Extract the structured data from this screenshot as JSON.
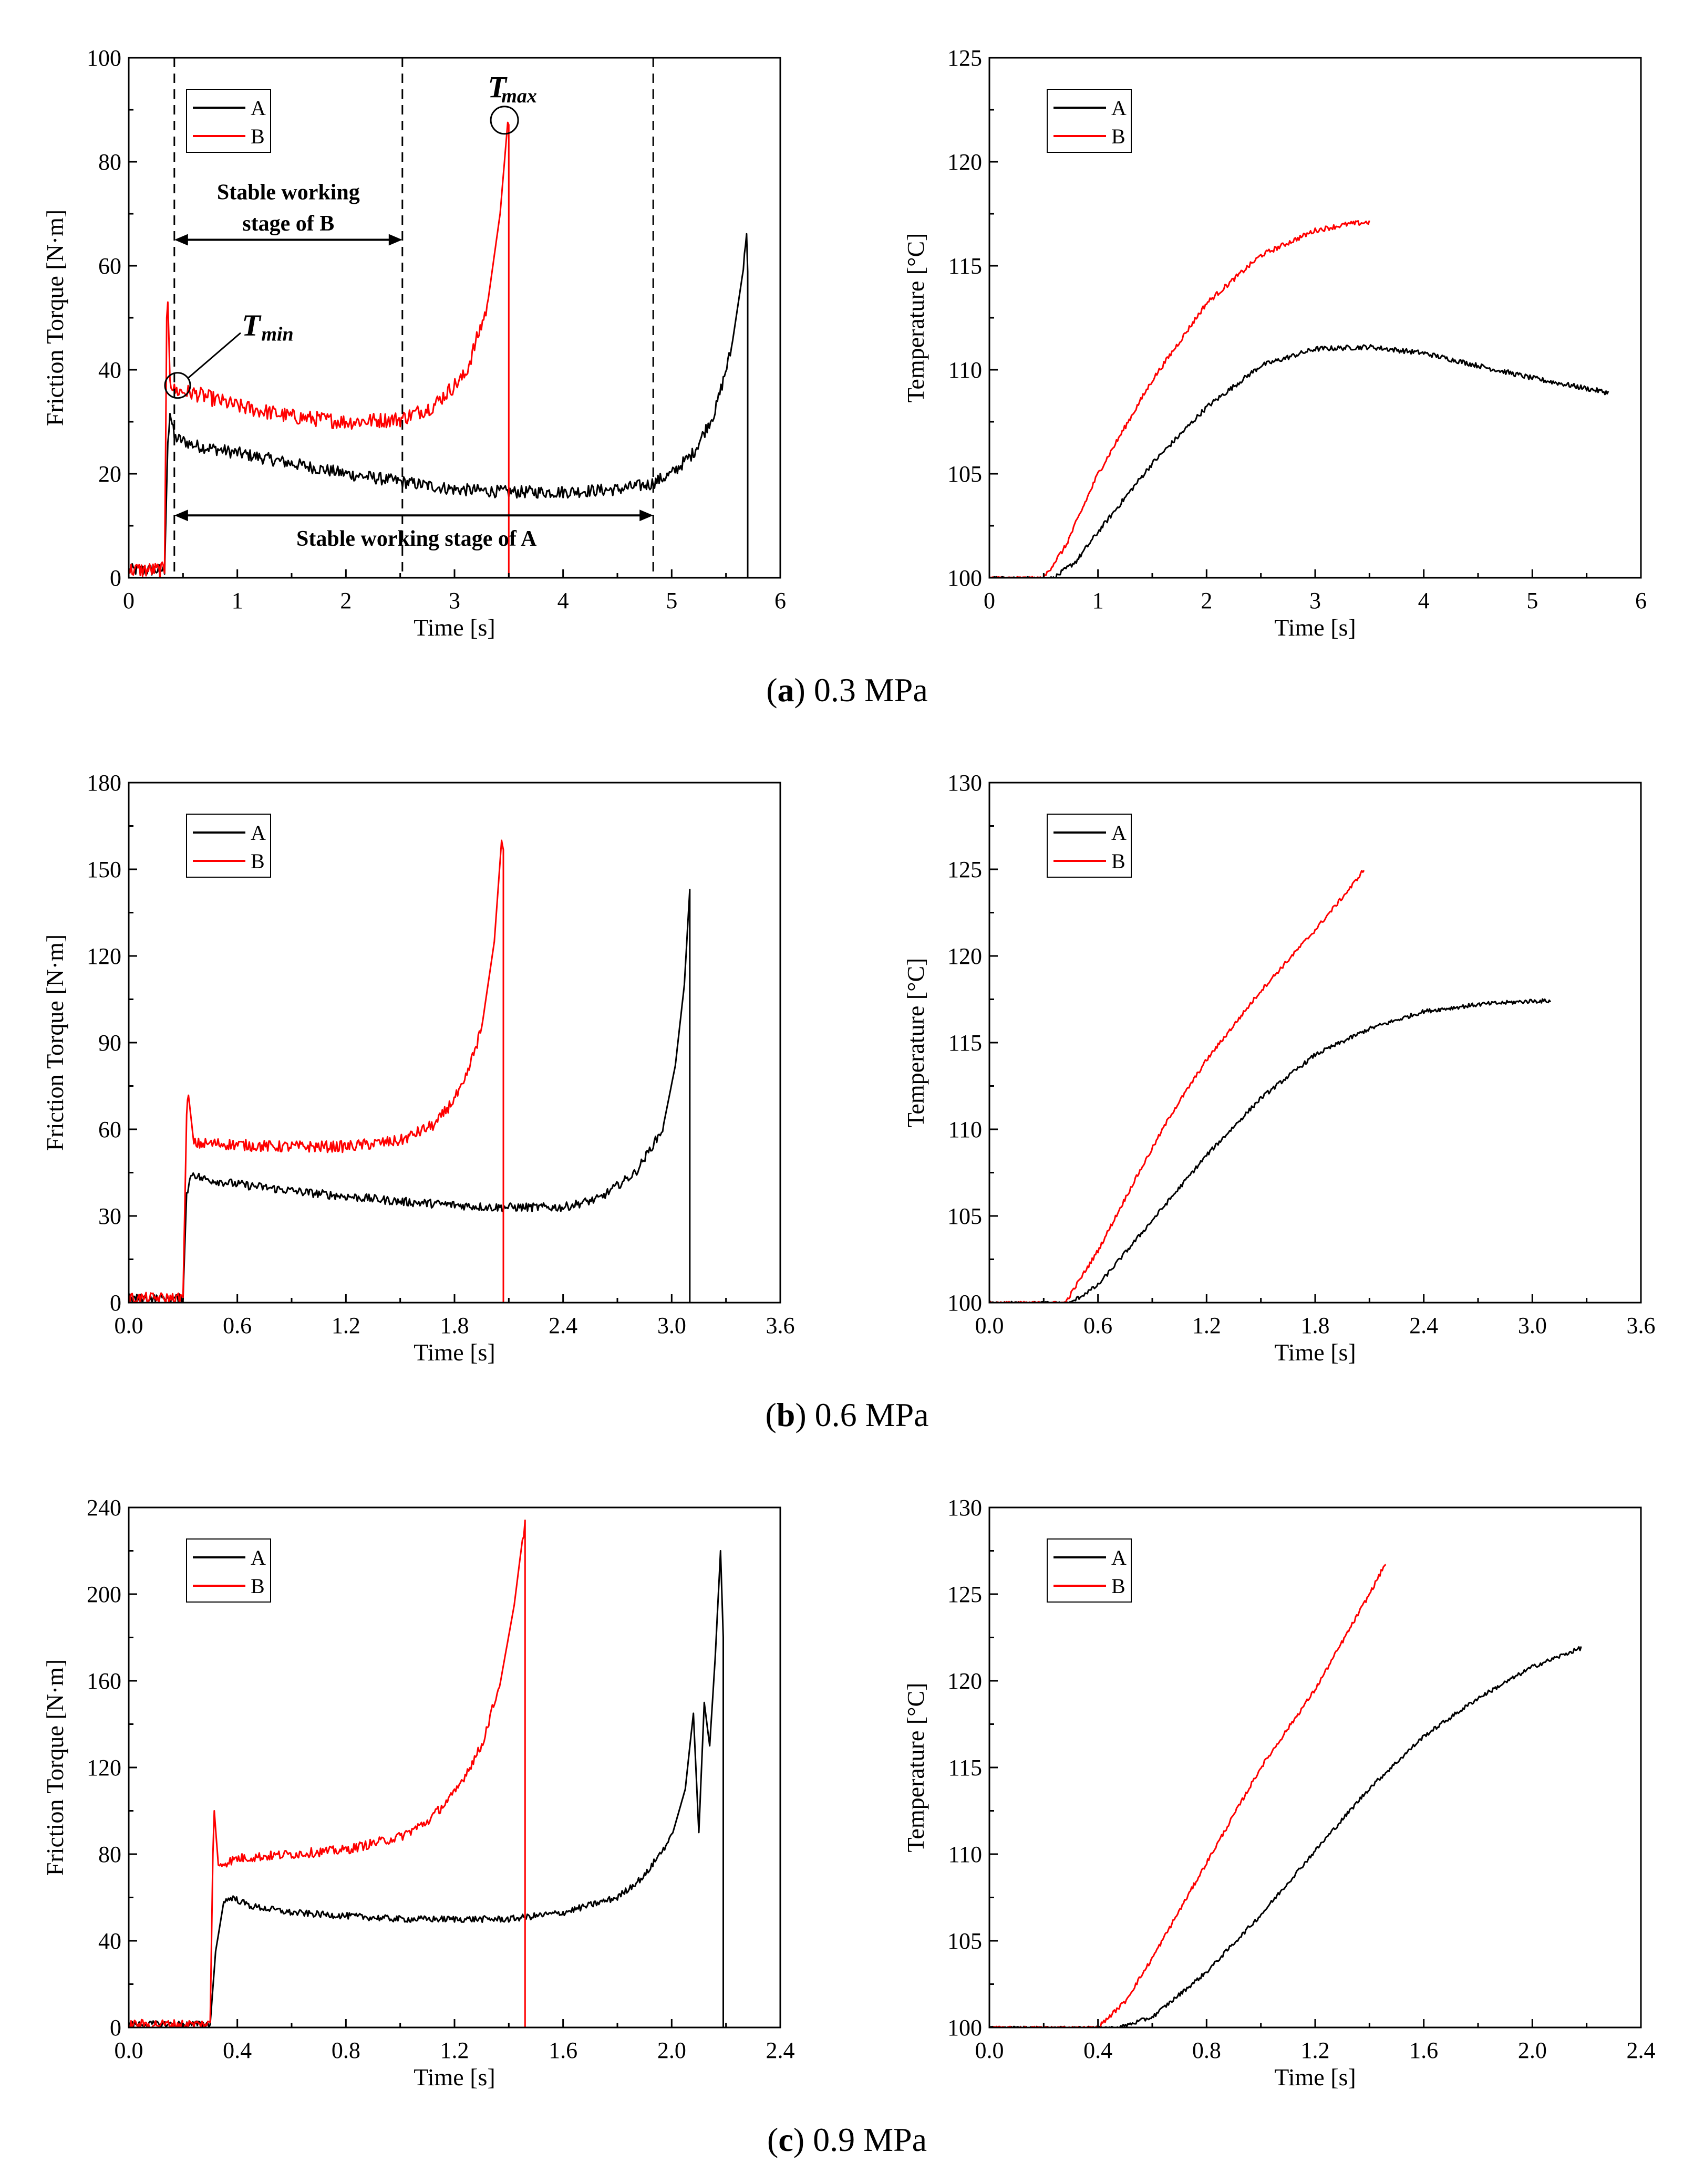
{
  "figure": {
    "captions": [
      {
        "letter": "a",
        "rest": ") 0.3 MPa",
        "open": "("
      },
      {
        "letter": "b",
        "rest": ") 0.6 MPa",
        "open": "("
      },
      {
        "letter": "c",
        "rest": ") 0.9 MPa",
        "open": "("
      }
    ]
  },
  "colors": {
    "A": "#000000",
    "B": "#ff0000"
  },
  "chart_data": [
    {
      "id": "a-torque",
      "type": "line",
      "row": 0,
      "col": 0,
      "xlabel": "Time [s]",
      "ylabel": "Friction Torque [N·m]",
      "xlim": [
        0,
        6
      ],
      "ylim": [
        0,
        100
      ],
      "xticks": [
        "0",
        "1",
        "2",
        "3",
        "4",
        "5",
        "6"
      ],
      "yticks": [
        "0",
        "20",
        "40",
        "60",
        "80",
        "100"
      ],
      "legend": [
        "A",
        "B"
      ],
      "legend_position": "top-left",
      "series": [
        {
          "name": "A",
          "noise": 1.2,
          "points": [
            [
              0,
              1.5
            ],
            [
              0.33,
              1.5
            ],
            [
              0.36,
              26
            ],
            [
              0.38,
              32
            ],
            [
              0.42,
              27
            ],
            [
              0.6,
              25.5
            ],
            [
              1,
              24
            ],
            [
              1.5,
              22
            ],
            [
              2,
              20
            ],
            [
              2.5,
              18.5
            ],
            [
              3,
              17
            ],
            [
              3.5,
              16.5
            ],
            [
              4,
              16.5
            ],
            [
              4.5,
              17
            ],
            [
              4.8,
              18
            ],
            [
              5,
              20
            ],
            [
              5.2,
              24
            ],
            [
              5.4,
              32
            ],
            [
              5.55,
              44
            ],
            [
              5.65,
              58
            ],
            [
              5.69,
              66
            ],
            [
              5.7,
              60
            ],
            [
              5.7,
              0
            ]
          ]
        },
        {
          "name": "B",
          "noise": 1.5,
          "points": [
            [
              0,
              1.5
            ],
            [
              0.33,
              1.5
            ],
            [
              0.35,
              50
            ],
            [
              0.36,
              54
            ],
            [
              0.38,
              38
            ],
            [
              0.42,
              36
            ],
            [
              0.6,
              35.5
            ],
            [
              1,
              33
            ],
            [
              1.5,
              31
            ],
            [
              2,
              30
            ],
            [
              2.5,
              30.5
            ],
            [
              2.8,
              33
            ],
            [
              3.1,
              39
            ],
            [
              3.3,
              52
            ],
            [
              3.42,
              70
            ],
            [
              3.48,
              85
            ],
            [
              3.5,
              88
            ],
            [
              3.5,
              0
            ]
          ]
        }
      ],
      "annotations": {
        "tmax": "T",
        "tmax_sub": "max",
        "tmin": "T",
        "tmin_sub": "min",
        "stage_b_line1": "Stable working",
        "stage_b_line2": "stage of B",
        "stage_a": "Stable working stage of A",
        "dashed_x": [
          0.42,
          2.52,
          4.83
        ],
        "stage_b_span": [
          0.42,
          2.52
        ],
        "stage_b_y": 65,
        "stage_a_span": [
          0.42,
          4.83
        ],
        "stage_a_y": 12,
        "tmax_point": [
          3.46,
          88
        ],
        "tmin_point": [
          0.45,
          37
        ]
      }
    },
    {
      "id": "a-temp",
      "type": "line",
      "row": 0,
      "col": 1,
      "xlabel": "Time [s]",
      "ylabel": "Temperature [°C]",
      "xlim": [
        0,
        6
      ],
      "ylim": [
        100,
        125
      ],
      "xticks": [
        "0",
        "1",
        "2",
        "3",
        "4",
        "5",
        "6"
      ],
      "yticks": [
        "100",
        "105",
        "110",
        "115",
        "120",
        "125"
      ],
      "legend": [
        "A",
        "B"
      ],
      "legend_position": "top-left",
      "series": [
        {
          "name": "A",
          "noise": 0.12,
          "points": [
            [
              0,
              100
            ],
            [
              0.6,
              100
            ],
            [
              0.8,
              100.8
            ],
            [
              1,
              102.2
            ],
            [
              1.5,
              105.5
            ],
            [
              2,
              108.2
            ],
            [
              2.5,
              110.2
            ],
            [
              3,
              111
            ],
            [
              3.5,
              111.1
            ],
            [
              4,
              110.8
            ],
            [
              4.5,
              110.2
            ],
            [
              5,
              109.6
            ],
            [
              5.5,
              109.1
            ],
            [
              5.7,
              108.9
            ]
          ]
        },
        {
          "name": "B",
          "noise": 0.12,
          "points": [
            [
              0,
              100
            ],
            [
              0.5,
              100
            ],
            [
              0.7,
              101.5
            ],
            [
              1,
              105
            ],
            [
              1.5,
              109.5
            ],
            [
              2,
              113.2
            ],
            [
              2.5,
              115.5
            ],
            [
              3,
              116.7
            ],
            [
              3.3,
              117
            ],
            [
              3.5,
              117.1
            ]
          ]
        }
      ]
    },
    {
      "id": "b-torque",
      "type": "line",
      "row": 1,
      "col": 0,
      "xlabel": "Time [s]",
      "ylabel": "Friction Torque [N·m]",
      "xlim": [
        0,
        3.6
      ],
      "ylim": [
        0,
        180
      ],
      "xticks": [
        "0.0",
        "0.6",
        "1.2",
        "1.8",
        "2.4",
        "3.0",
        "3.6"
      ],
      "yticks": [
        "0",
        "30",
        "60",
        "90",
        "120",
        "150",
        "180"
      ],
      "legend": [
        "A",
        "B"
      ],
      "legend_position": "top-left",
      "series": [
        {
          "name": "A",
          "noise": 1.5,
          "points": [
            [
              0,
              1.5
            ],
            [
              0.3,
              1.5
            ],
            [
              0.32,
              38
            ],
            [
              0.35,
              45
            ],
            [
              0.4,
              43
            ],
            [
              0.6,
              41
            ],
            [
              1,
              38
            ],
            [
              1.5,
              35
            ],
            [
              2,
              33
            ],
            [
              2.4,
              33
            ],
            [
              2.6,
              36
            ],
            [
              2.8,
              45
            ],
            [
              2.95,
              60
            ],
            [
              3.02,
              82
            ],
            [
              3.07,
              110
            ],
            [
              3.1,
              143
            ],
            [
              3.1,
              0
            ]
          ]
        },
        {
          "name": "B",
          "noise": 2.0,
          "points": [
            [
              0,
              1.5
            ],
            [
              0.3,
              1.5
            ],
            [
              0.32,
              65
            ],
            [
              0.33,
              72
            ],
            [
              0.36,
              55
            ],
            [
              0.5,
              55
            ],
            [
              0.8,
              54
            ],
            [
              1.2,
              54
            ],
            [
              1.5,
              56
            ],
            [
              1.7,
              62
            ],
            [
              1.85,
              75
            ],
            [
              1.95,
              95
            ],
            [
              2.02,
              125
            ],
            [
              2.06,
              160
            ],
            [
              2.07,
              155
            ],
            [
              2.07,
              0
            ]
          ]
        }
      ]
    },
    {
      "id": "b-temp",
      "type": "line",
      "row": 1,
      "col": 1,
      "xlabel": "Time [s]",
      "ylabel": "Temperature [°C]",
      "xlim": [
        0,
        3.6
      ],
      "ylim": [
        100,
        130
      ],
      "xticks": [
        "0.0",
        "0.6",
        "1.2",
        "1.8",
        "2.4",
        "3.0",
        "3.6"
      ],
      "yticks": [
        "100",
        "105",
        "110",
        "115",
        "120",
        "125",
        "130"
      ],
      "legend": [
        "A",
        "B"
      ],
      "legend_position": "top-left",
      "series": [
        {
          "name": "A",
          "noise": 0.12,
          "points": [
            [
              0,
              100
            ],
            [
              0.45,
              100
            ],
            [
              0.6,
              101
            ],
            [
              0.8,
              103.5
            ],
            [
              1,
              106
            ],
            [
              1.2,
              108.5
            ],
            [
              1.5,
              111.8
            ],
            [
              1.8,
              114.3
            ],
            [
              2.1,
              115.8
            ],
            [
              2.4,
              116.8
            ],
            [
              2.7,
              117.2
            ],
            [
              3,
              117.4
            ],
            [
              3.1,
              117.4
            ]
          ]
        },
        {
          "name": "B",
          "noise": 0.12,
          "points": [
            [
              0,
              100
            ],
            [
              0.42,
              100
            ],
            [
              0.6,
              103
            ],
            [
              0.8,
              107
            ],
            [
              1,
              110.8
            ],
            [
              1.2,
              114
            ],
            [
              1.5,
              118
            ],
            [
              1.8,
              121.5
            ],
            [
              2,
              124
            ],
            [
              2.07,
              125
            ]
          ]
        }
      ]
    },
    {
      "id": "c-torque",
      "type": "line",
      "row": 2,
      "col": 0,
      "xlabel": "Time [s]",
      "ylabel": "Friction Torque [N·m]",
      "xlim": [
        0,
        2.4
      ],
      "ylim": [
        0,
        240
      ],
      "xticks": [
        "0.0",
        "0.4",
        "0.8",
        "1.2",
        "1.6",
        "2.0",
        "2.4"
      ],
      "yticks": [
        "0",
        "40",
        "80",
        "120",
        "160",
        "200",
        "240"
      ],
      "legend": [
        "A",
        "B"
      ],
      "legend_position": "top-left",
      "series": [
        {
          "name": "A",
          "noise": 1.5,
          "points": [
            [
              0,
              1.5
            ],
            [
              0.3,
              1.5
            ],
            [
              0.32,
              35
            ],
            [
              0.35,
              58
            ],
            [
              0.38,
              60
            ],
            [
              0.45,
              56
            ],
            [
              0.6,
              53
            ],
            [
              1,
              50
            ],
            [
              1.4,
              50
            ],
            [
              1.6,
              53
            ],
            [
              1.8,
              60
            ],
            [
              1.9,
              70
            ],
            [
              2,
              88
            ],
            [
              2.05,
              110
            ],
            [
              2.08,
              145
            ],
            [
              2.1,
              90
            ],
            [
              2.12,
              150
            ],
            [
              2.14,
              130
            ],
            [
              2.16,
              170
            ],
            [
              2.18,
              220
            ],
            [
              2.19,
              180
            ],
            [
              2.19,
              0
            ]
          ]
        },
        {
          "name": "B",
          "noise": 2.2,
          "points": [
            [
              0,
              1.5
            ],
            [
              0.3,
              1.5
            ],
            [
              0.31,
              80
            ],
            [
              0.315,
              100
            ],
            [
              0.33,
              75
            ],
            [
              0.4,
              78
            ],
            [
              0.6,
              80
            ],
            [
              0.8,
              82
            ],
            [
              1,
              88
            ],
            [
              1.1,
              95
            ],
            [
              1.2,
              108
            ],
            [
              1.3,
              130
            ],
            [
              1.37,
              160
            ],
            [
              1.42,
              195
            ],
            [
              1.45,
              225
            ],
            [
              1.46,
              232
            ],
            [
              1.46,
              0
            ]
          ]
        }
      ]
    },
    {
      "id": "c-temp",
      "type": "line",
      "row": 2,
      "col": 1,
      "xlabel": "Time [s]",
      "ylabel": "Temperature [°C]",
      "xlim": [
        0,
        2.4
      ],
      "ylim": [
        100,
        130
      ],
      "xticks": [
        "0.0",
        "0.4",
        "0.8",
        "1.2",
        "1.6",
        "2.0",
        "2.4"
      ],
      "yticks": [
        "100",
        "105",
        "110",
        "115",
        "120",
        "125",
        "130"
      ],
      "legend": [
        "A",
        "B"
      ],
      "legend_position": "top-left",
      "series": [
        {
          "name": "A",
          "noise": 0.12,
          "points": [
            [
              0,
              100
            ],
            [
              0.48,
              100
            ],
            [
              0.6,
              100.6
            ],
            [
              0.8,
              103.2
            ],
            [
              1,
              106.5
            ],
            [
              1.2,
              110.2
            ],
            [
              1.4,
              113.8
            ],
            [
              1.6,
              116.8
            ],
            [
              1.8,
              119
            ],
            [
              2,
              120.8
            ],
            [
              2.18,
              121.9
            ]
          ]
        },
        {
          "name": "B",
          "noise": 0.12,
          "points": [
            [
              0,
              100
            ],
            [
              0.4,
              100
            ],
            [
              0.5,
              101.5
            ],
            [
              0.6,
              104
            ],
            [
              0.8,
              109.5
            ],
            [
              1,
              115
            ],
            [
              1.2,
              119.5
            ],
            [
              1.4,
              125
            ],
            [
              1.46,
              126.8
            ]
          ]
        }
      ]
    }
  ]
}
